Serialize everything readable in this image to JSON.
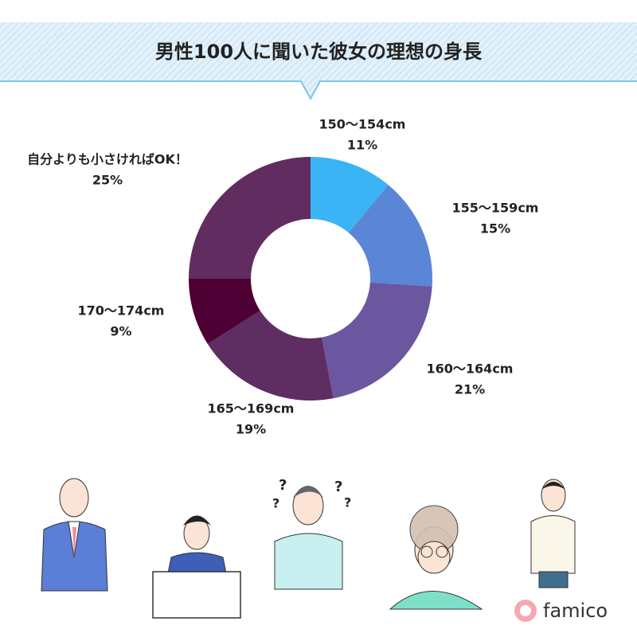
{
  "chart_data": {
    "type": "donut",
    "title": "男性100人に聞いた彼女の理想の身長",
    "categories": [
      "150〜154cm",
      "155〜159cm",
      "160〜164cm",
      "165〜169cm",
      "170〜174cm",
      "自分よりも小さければOK！"
    ],
    "values": [
      11,
      15,
      21,
      19,
      9,
      25
    ],
    "value_labels": [
      "11%",
      "15%",
      "21%",
      "19%",
      "9%",
      "25%"
    ],
    "colors": [
      "#3bb4f5",
      "#5b86d6",
      "#6a57a0",
      "#5e2d62",
      "#4e0034",
      "#612d60"
    ]
  },
  "logo": "famico"
}
